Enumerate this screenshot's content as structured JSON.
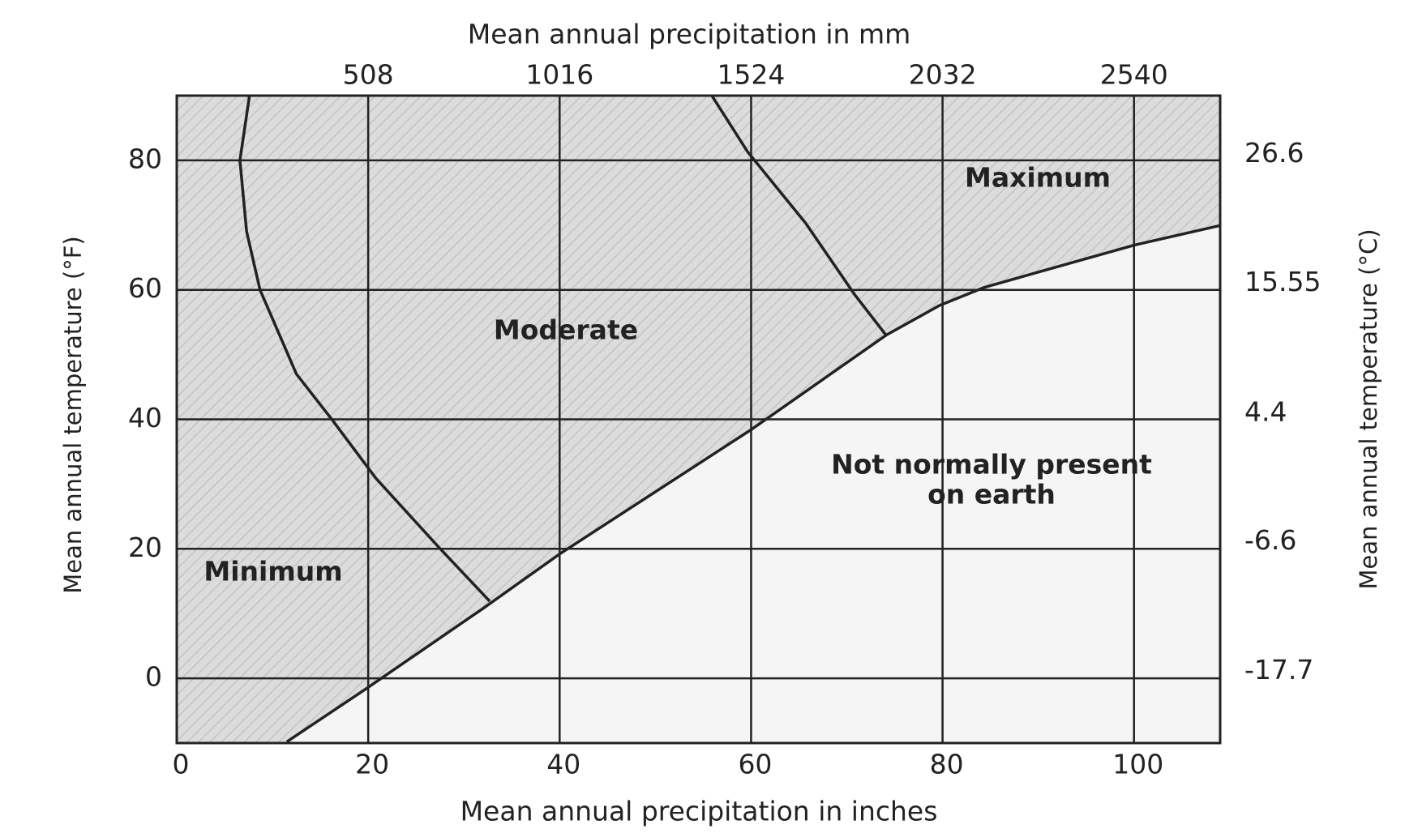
{
  "chart_data": {
    "type": "line",
    "title": "Mean annual precipitation in mm",
    "x_label": "Mean annual precipitation in inches",
    "y_label": "Mean annual temperature (°F)",
    "y2_label": "Mean annual temperature (°C)",
    "xlim": [
      0,
      109
    ],
    "xticks": [
      0,
      20,
      40,
      60,
      80,
      100
    ],
    "x2lim": [
      0,
      2768.6
    ],
    "x2ticks": [
      508,
      1016,
      1524,
      2032,
      2540
    ],
    "ylim": [
      -10,
      90
    ],
    "yticks": [
      0,
      20,
      40,
      60,
      80
    ],
    "y2lim": [
      -23.3,
      32.2
    ],
    "y2ticks": [
      26.6,
      15.55,
      4.4,
      -6.6,
      -17.7
    ],
    "grid": true,
    "series": [
      {
        "color": "#222222",
        "x": [
          7.6,
          6.6,
          7.3,
          8.7,
          12.5,
          16.2,
          20.8,
          27.4,
          32.7
        ],
        "values": [
          90,
          80,
          69,
          60,
          47,
          40,
          30.9,
          20.2,
          11.9
        ]
      },
      {
        "color": "#222222",
        "x": [
          55.9,
          59.6,
          65.7,
          70.8,
          74.1
        ],
        "values": [
          90,
          81.4,
          70.3,
          59.3,
          53
        ]
      },
      {
        "color": "#222222",
        "x": [
          11.5,
          19.9,
          32.1,
          40,
          60.1,
          74.1,
          79.7,
          84.4,
          100,
          108.9
        ],
        "values": [
          -9.8,
          -1.5,
          10.9,
          19.2,
          38.5,
          53,
          57.6,
          60.4,
          66.9,
          69.9
        ]
      }
    ],
    "annotations": [
      {
        "text": "Minimum"
      },
      {
        "text": "Moderate"
      },
      {
        "text": "Maximum"
      },
      {
        "lines": [
          "Not normally present",
          "on earth"
        ]
      }
    ]
  }
}
